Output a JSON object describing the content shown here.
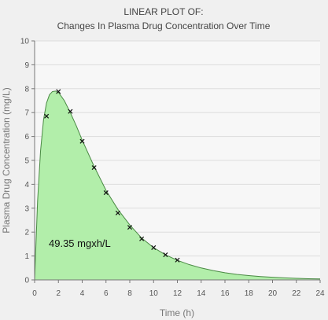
{
  "title": {
    "line1": "LINEAR PLOT OF:",
    "line2": "Changes In Plasma Drug Concentration Over Time"
  },
  "annotation": "49.35 mgxh/L",
  "colors": {
    "background": "#f0f0f0",
    "plot_area": "#f7f7f7",
    "fill": "#b2eeaa",
    "curve": "#4a8a44",
    "grid": "#dddddd",
    "axis": "#777777",
    "marker": "#111111"
  },
  "chart_data": {
    "type": "area",
    "xlabel": "Time (h)",
    "ylabel": "Plasma Drug Concentration (mg/L)",
    "xlim": [
      0,
      24
    ],
    "ylim": [
      0,
      10
    ],
    "x_ticks": [
      0,
      2,
      4,
      6,
      8,
      10,
      12,
      14,
      16,
      18,
      20,
      22,
      24
    ],
    "y_ticks": [
      0,
      1,
      2,
      3,
      4,
      5,
      6,
      7,
      8,
      9,
      10
    ],
    "grid": "horizontal",
    "series": [
      {
        "kind": "fitted-curve-area",
        "x": [
          0,
          0.25,
          0.5,
          0.75,
          1,
          1.25,
          1.5,
          1.75,
          2,
          2.5,
          3,
          3.5,
          4,
          5,
          6,
          7,
          8,
          9,
          10,
          11,
          12,
          13,
          14,
          15,
          16,
          17,
          18,
          19,
          20,
          21,
          22,
          23,
          24
        ],
        "y": [
          0,
          3.3,
          5.4,
          6.7,
          7.4,
          7.75,
          7.88,
          7.9,
          7.85,
          7.5,
          7.0,
          6.45,
          5.85,
          4.75,
          3.75,
          2.95,
          2.3,
          1.75,
          1.35,
          1.05,
          0.82,
          0.64,
          0.5,
          0.39,
          0.3,
          0.23,
          0.18,
          0.14,
          0.11,
          0.085,
          0.065,
          0.05,
          0.04
        ]
      },
      {
        "kind": "observed-points",
        "x": [
          1,
          2,
          3,
          4,
          5,
          6,
          7,
          8,
          9,
          10,
          11,
          12
        ],
        "y": [
          6.85,
          7.88,
          7.05,
          5.8,
          4.7,
          3.65,
          2.8,
          2.2,
          1.72,
          1.35,
          1.05,
          0.83
        ]
      }
    ]
  }
}
